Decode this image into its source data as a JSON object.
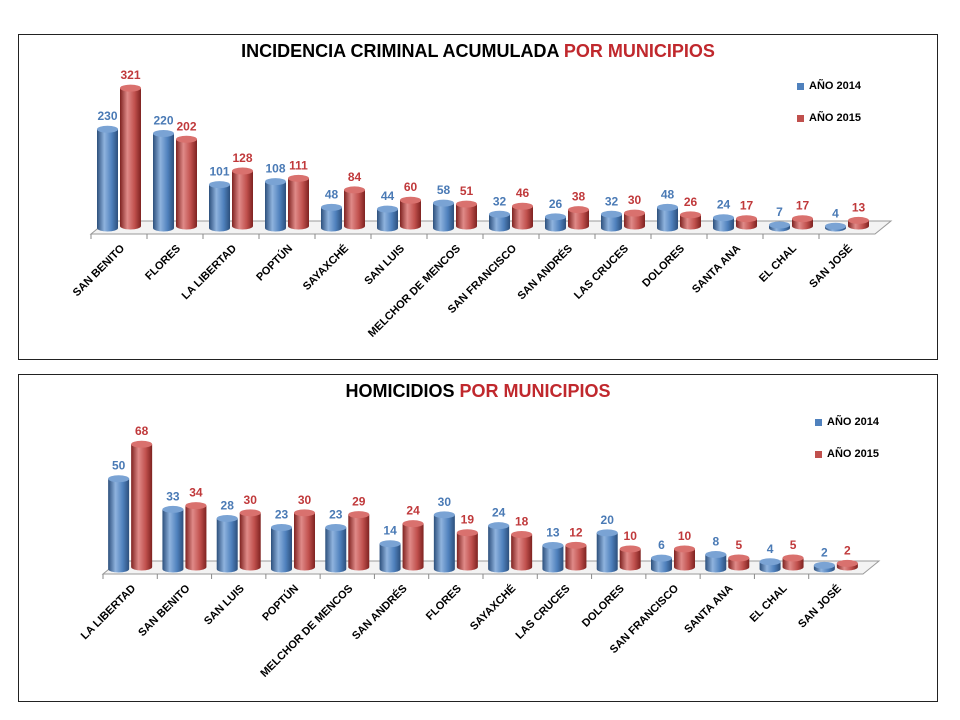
{
  "colors": {
    "series2014": "#4f81bd",
    "series2015": "#c0504d",
    "label2014": "#4a7ab5",
    "label2015": "#c0393b",
    "title_highlight": "#c0282d"
  },
  "chart_data": [
    {
      "type": "bar",
      "title_part1": "INCIDENCIA CRIMINAL ACUMULADA",
      "title_part2": "POR MUNICIPIOS",
      "categories": [
        "SAN BENITO",
        "FLORES",
        "LA LIBERTAD",
        "POPTÚN",
        "SAYAXCHÉ",
        "SAN LUIS",
        "MELCHOR DE MENCOS",
        "SAN FRANCISCO",
        "SAN ANDRÉS",
        "LAS CRUCES",
        "DOLORES",
        "SANTA ANA",
        "EL CHAL",
        "SAN JOSÉ"
      ],
      "series": [
        {
          "name": "AÑO 2014",
          "values": [
            230,
            220,
            101,
            108,
            48,
            44,
            58,
            32,
            26,
            32,
            48,
            24,
            7,
            4
          ]
        },
        {
          "name": "AÑO 2015",
          "values": [
            321,
            202,
            128,
            111,
            84,
            60,
            51,
            46,
            38,
            30,
            26,
            17,
            17,
            13
          ]
        }
      ],
      "ylim": [
        0,
        340
      ],
      "legend": "top-right",
      "grid": false
    },
    {
      "type": "bar",
      "title_part1": "HOMICIDIOS",
      "title_part2": "POR MUNICIPIOS",
      "categories": [
        "LA LIBERTAD",
        "SAN BENITO",
        "SAN LUIS",
        "POPTÚN",
        "MELCHOR DE MENCOS",
        "SAN ANDRÉS",
        "FLORES",
        "SAYAXCHÉ",
        "LAS CRUCES",
        "DOLORES",
        "SAN FRANCISCO",
        "SANTA ANA",
        "EL CHAL",
        "SAN JOSÉ"
      ],
      "series": [
        {
          "name": "AÑO 2014",
          "values": [
            50,
            33,
            28,
            23,
            23,
            14,
            30,
            24,
            13,
            20,
            6,
            8,
            4,
            2
          ]
        },
        {
          "name": "AÑO 2015",
          "values": [
            68,
            34,
            30,
            30,
            29,
            24,
            19,
            18,
            12,
            10,
            10,
            5,
            5,
            2
          ]
        }
      ],
      "ylim": [
        0,
        72
      ],
      "legend": "top-right",
      "grid": false
    }
  ]
}
